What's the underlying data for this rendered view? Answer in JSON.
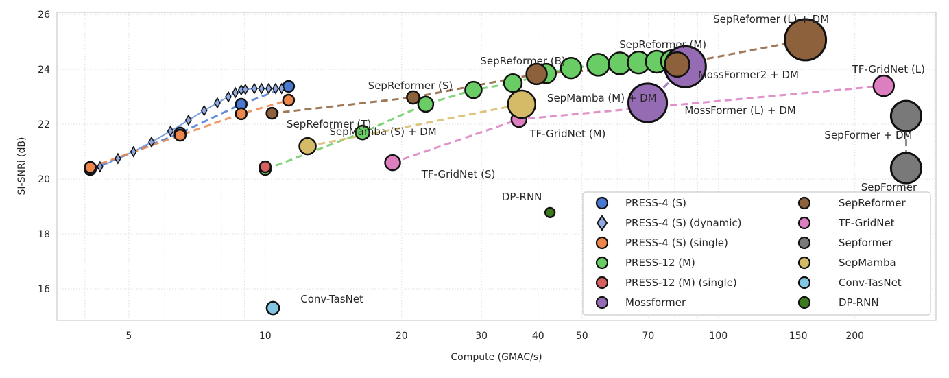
{
  "chart_data": {
    "type": "scatter",
    "xlabel": "Compute (GMAC/s)",
    "ylabel": "SI-SNRi (dB)",
    "xscale": "log",
    "xlim": [
      3.47,
      302
    ],
    "ylim": [
      14.85,
      26.08
    ],
    "x_ticks": [
      5,
      10,
      20,
      30,
      40,
      50,
      70,
      100,
      150,
      200
    ],
    "y_ticks": [
      16,
      18,
      20,
      22,
      24,
      26
    ],
    "grid": true,
    "legend_position": "bottom-right",
    "legend_columns": 2,
    "series": [
      {
        "name": "PRESS-4 (S)",
        "color": "#4878d0",
        "marker": "circle",
        "line": "dashed",
        "points": [
          [
            4.11,
            20.35,
            1
          ],
          [
            6.49,
            21.68,
            1
          ],
          [
            8.85,
            22.73,
            1
          ],
          [
            11.26,
            23.38,
            1
          ]
        ]
      },
      {
        "name": "PRESS-4 (S) (dynamic)",
        "color": "#8fa9e0",
        "line_color": "#6f93d8",
        "marker": "diamond",
        "line": "solid",
        "points": [
          [
            4.2,
            20.4
          ],
          [
            4.32,
            20.45
          ],
          [
            4.73,
            20.75
          ],
          [
            5.12,
            21.0
          ],
          [
            5.61,
            21.35
          ],
          [
            6.18,
            21.75
          ],
          [
            6.77,
            22.15
          ],
          [
            7.33,
            22.5
          ],
          [
            7.84,
            22.78
          ],
          [
            8.29,
            23.0
          ],
          [
            8.59,
            23.15
          ],
          [
            8.85,
            23.25
          ],
          [
            9.04,
            23.27
          ],
          [
            9.46,
            23.3
          ],
          [
            9.81,
            23.3
          ],
          [
            10.18,
            23.3
          ],
          [
            10.54,
            23.3
          ],
          [
            10.87,
            23.3
          ]
        ]
      },
      {
        "name": "PRESS-4 (S) (single)",
        "color": "#ee854a",
        "marker": "circle",
        "line": "dashed",
        "points": [
          [
            4.11,
            20.43,
            1
          ],
          [
            6.49,
            21.6,
            1
          ],
          [
            8.85,
            22.38,
            1
          ],
          [
            11.26,
            22.88,
            1
          ]
        ]
      },
      {
        "name": "PRESS-12 (M)",
        "color": "#6acc64",
        "marker": "circle",
        "line": "dashed",
        "points": [
          [
            10,
            20.35,
            1
          ],
          [
            16.4,
            21.7,
            1.6
          ],
          [
            22.6,
            22.73,
            1.9
          ],
          [
            28.8,
            23.25,
            2.25
          ],
          [
            35.2,
            23.5,
            2.6
          ],
          [
            41.7,
            23.85,
            3.1
          ],
          [
            47.3,
            24.05,
            3.5
          ],
          [
            54.3,
            24.17,
            4
          ],
          [
            60.6,
            24.22,
            4
          ],
          [
            66.7,
            24.25,
            4
          ],
          [
            73.1,
            24.28,
            4
          ],
          [
            78.9,
            24.3,
            4
          ]
        ]
      },
      {
        "name": "PRESS-12 (M) (single)",
        "color": "#d65f5f",
        "marker": "circle",
        "line": "none",
        "points": [
          [
            10,
            20.45,
            1
          ]
        ]
      },
      {
        "name": "Mossformer",
        "color": "#956cb4",
        "marker": "circle",
        "line": "dashed",
        "points": [
          [
            69.8,
            22.78,
            12.3
          ],
          [
            84.5,
            24.1,
            14
          ]
        ]
      },
      {
        "name": "SepReformer",
        "color": "#8c613c",
        "marker": "circle",
        "line": "dashed",
        "points": [
          [
            10.35,
            22.4,
            1
          ],
          [
            21.2,
            22.98,
            1.3
          ],
          [
            39.7,
            23.83,
            3.5
          ],
          [
            81.1,
            24.18,
            5
          ],
          [
            155.6,
            25.08,
            14
          ]
        ]
      },
      {
        "name": "TF-GridNet",
        "color": "#dc7ec0",
        "marker": "circle",
        "line": "dashed",
        "points": [
          [
            19.1,
            20.6,
            1.9
          ],
          [
            36.3,
            22.18,
            1.9
          ],
          [
            231.6,
            23.4,
            3.5
          ]
        ]
      },
      {
        "name": "Sepformer",
        "color": "#797979",
        "marker": "circle",
        "line": "dashed",
        "points": [
          [
            259.5,
            20.4,
            7.6
          ],
          [
            259.5,
            22.3,
            7.6
          ]
        ]
      },
      {
        "name": "SepMamba",
        "color": "#d5bb67",
        "marker": "circle",
        "line": "dashed",
        "points": [
          [
            12.4,
            21.2,
            2.25
          ],
          [
            36.8,
            22.73,
            6.25
          ]
        ]
      },
      {
        "name": "Conv-TasNet",
        "color": "#82c6e2",
        "marker": "circle",
        "line": "none",
        "points": [
          [
            10.4,
            15.3,
            1.3
          ]
        ]
      },
      {
        "name": "DP-RNN",
        "color": "#3d7a1e",
        "marker": "circle",
        "line": "none",
        "points": [
          [
            42.5,
            18.78,
            0.75
          ]
        ]
      }
    ],
    "annotations": [
      {
        "text": "SepReformer (L) + DM",
        "x": 155.6,
        "y": 25.08
      },
      {
        "text": "SepReformer (M)",
        "x": 81.1,
        "y": 24.18
      },
      {
        "text": "SepReformer (B)",
        "x": 39.7,
        "y": 23.83
      },
      {
        "text": "SepReformer (S)",
        "x": 21.2,
        "y": 22.98
      },
      {
        "text": "SepReformer (T)",
        "x": 10.35,
        "y": 22.4
      },
      {
        "text": "SepMamba (S) + DM",
        "x": 12.4,
        "y": 21.2
      },
      {
        "text": "SepMamba (M) + DM",
        "x": 36.8,
        "y": 22.73
      },
      {
        "text": "MossFormer2 + DM",
        "x": 84.5,
        "y": 24.1
      },
      {
        "text": "MossFormer (L) + DM",
        "x": 69.8,
        "y": 22.78
      },
      {
        "text": "TF-GridNet (L)",
        "x": 231.6,
        "y": 23.4
      },
      {
        "text": "TF-GridNet (M)",
        "x": 36.3,
        "y": 22.18
      },
      {
        "text": "TF-GridNet (S)",
        "x": 19.1,
        "y": 20.6
      },
      {
        "text": "SepFormer + DM",
        "x": 259.5,
        "y": 22.3
      },
      {
        "text": "SepFormer",
        "x": 259.5,
        "y": 20.4
      },
      {
        "text": "DP-RNN",
        "x": 42.5,
        "y": 18.78
      },
      {
        "text": "Conv-TasNet",
        "x": 10.4,
        "y": 15.3
      }
    ]
  }
}
